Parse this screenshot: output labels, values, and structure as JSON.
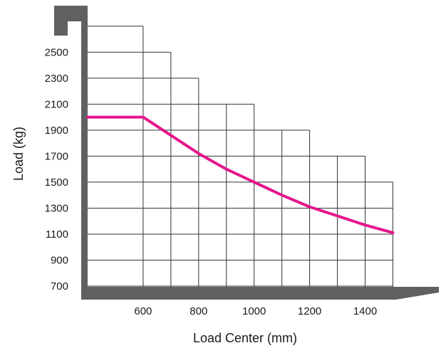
{
  "chart_data": {
    "type": "line",
    "title": "",
    "xlabel": "Load Center (mm)",
    "ylabel": "Load (kg)",
    "xlim": [
      400,
      1500
    ],
    "ylim": [
      650,
      2700
    ],
    "x_ticks": [
      600,
      800,
      1000,
      1200,
      1400
    ],
    "x_tick_labels": [
      "600",
      "800",
      "1000",
      "1200",
      "1400"
    ],
    "y_ticks": [
      700,
      900,
      1100,
      1300,
      1500,
      1700,
      1900,
      2100,
      2300,
      2500
    ],
    "y_tick_labels": [
      "700",
      "900",
      "1100",
      "1300",
      "1500",
      "1700",
      "1900",
      "2100",
      "2300",
      "2500"
    ],
    "grid": true,
    "grid_columns_x": [
      600,
      700,
      800,
      900,
      1000,
      1100,
      1200,
      1300,
      1400,
      1500
    ],
    "grid_column_tops_kg": [
      2700,
      2500,
      2300,
      2100,
      2100,
      1900,
      1900,
      1700,
      1700,
      1500
    ],
    "series": [
      {
        "color": "#e6168c",
        "x": [
          400,
          500,
          600,
          700,
          800,
          900,
          1000,
          1100,
          1200,
          1300,
          1400,
          1500
        ],
        "y": [
          2000,
          2000,
          2000,
          1860,
          1720,
          1600,
          1500,
          1400,
          1310,
          1240,
          1170,
          1110
        ]
      }
    ],
    "colors": {
      "frame": "#5f6062",
      "grid": "#333333",
      "line": "#e6168c"
    }
  }
}
